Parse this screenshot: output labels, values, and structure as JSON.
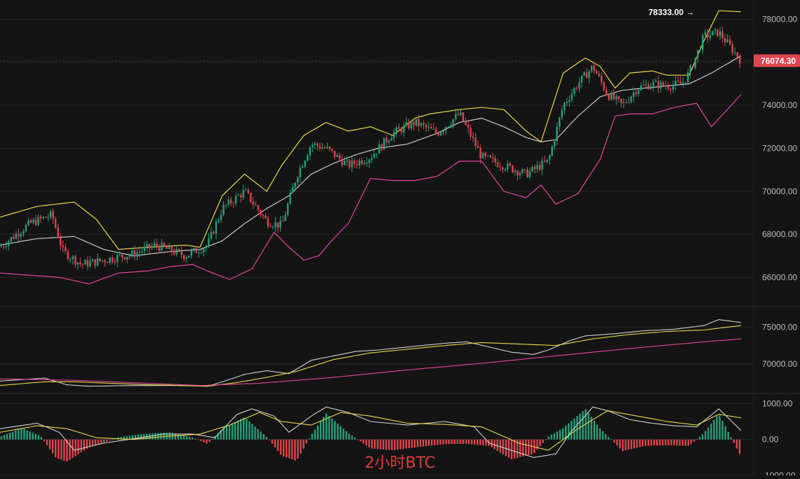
{
  "caption": "2小时BTC",
  "colors": {
    "background": "#141414",
    "up": "#26a17b",
    "down": "#e0454f",
    "bb_upper": "#e8d84a",
    "bb_middle": "#c8c8c8",
    "bb_lower": "#e3459c",
    "ma_white": "#d0d0d0",
    "ma_yellow": "#e8d84a",
    "ma_pink": "#e3459c",
    "macd_dif": "#d0d0d0",
    "macd_dea": "#e8d84a",
    "price_tag": "#e0454f",
    "grid": "#262626"
  },
  "chart_data": [
    {
      "type": "candlestick",
      "panel": "price",
      "title": "",
      "indicators": [
        "bollinger_upper",
        "bollinger_middle",
        "bollinger_lower"
      ],
      "ylim": [
        65200,
        78700
      ],
      "y_ticks": [
        "66000.00",
        "68000.00",
        "70000.00",
        "72000.00",
        "74000.00",
        "76000.00",
        "78000.00"
      ],
      "y_tick_values": [
        66000,
        68000,
        70000,
        72000,
        74000,
        76000,
        78000
      ],
      "high_annotation": {
        "label": "78333.00 →",
        "value": 78333
      },
      "last_price": {
        "label": "76074.30",
        "value": 76074.3
      },
      "close_path": {
        "x": [
          0,
          0.04,
          0.07,
          0.085,
          0.11,
          0.14,
          0.18,
          0.21,
          0.25,
          0.28,
          0.3,
          0.33,
          0.36,
          0.38,
          0.4,
          0.42,
          0.44,
          0.47,
          0.5,
          0.53,
          0.56,
          0.59,
          0.62,
          0.65,
          0.68,
          0.71,
          0.74,
          0.76,
          0.78,
          0.8,
          0.82,
          0.84,
          0.86,
          0.88,
          0.9,
          0.92,
          0.93,
          0.95,
          0.97,
          1.0
        ],
        "y": [
          67400,
          68500,
          68900,
          67200,
          66600,
          66800,
          67100,
          67500,
          67000,
          67500,
          69200,
          70000,
          68600,
          68400,
          70700,
          72200,
          72000,
          71200,
          71600,
          72700,
          73200,
          72700,
          73600,
          71600,
          71200,
          70800,
          71400,
          74000,
          75000,
          75800,
          74500,
          74000,
          74800,
          75000,
          74900,
          75000,
          75500,
          77200,
          77400,
          76074
        ]
      },
      "bb_upper": {
        "x": [
          0,
          0.05,
          0.1,
          0.13,
          0.16,
          0.2,
          0.25,
          0.27,
          0.3,
          0.33,
          0.36,
          0.38,
          0.41,
          0.44,
          0.47,
          0.5,
          0.53,
          0.56,
          0.58,
          0.62,
          0.65,
          0.68,
          0.71,
          0.73,
          0.76,
          0.79,
          0.81,
          0.83,
          0.85,
          0.88,
          0.9,
          0.93,
          0.95,
          0.97,
          1.0
        ],
        "y": [
          68800,
          69300,
          69500,
          68700,
          67300,
          67400,
          67500,
          67400,
          69800,
          70800,
          70000,
          71200,
          72600,
          73200,
          72800,
          73000,
          72600,
          73400,
          73600,
          73800,
          73900,
          73800,
          72800,
          72300,
          75500,
          76200,
          75800,
          74800,
          75500,
          75600,
          75400,
          75400,
          77000,
          78400,
          78350
        ]
      },
      "bb_middle": {
        "x": [
          0,
          0.05,
          0.1,
          0.14,
          0.18,
          0.23,
          0.27,
          0.3,
          0.33,
          0.36,
          0.39,
          0.42,
          0.45,
          0.48,
          0.51,
          0.55,
          0.59,
          0.62,
          0.65,
          0.68,
          0.71,
          0.73,
          0.75,
          0.78,
          0.81,
          0.84,
          0.87,
          0.9,
          0.93,
          0.96,
          1.0
        ],
        "y": [
          67500,
          67800,
          67900,
          67300,
          67000,
          67200,
          67300,
          67700,
          68500,
          69200,
          69800,
          70800,
          71300,
          71700,
          72000,
          72200,
          72700,
          73200,
          73400,
          73000,
          72500,
          72300,
          72400,
          73500,
          74400,
          74700,
          74800,
          74900,
          75000,
          75500,
          76300
        ]
      },
      "bb_lower": {
        "x": [
          0,
          0.04,
          0.08,
          0.12,
          0.16,
          0.2,
          0.23,
          0.26,
          0.28,
          0.31,
          0.34,
          0.37,
          0.39,
          0.41,
          0.43,
          0.45,
          0.47,
          0.5,
          0.53,
          0.56,
          0.59,
          0.62,
          0.65,
          0.68,
          0.71,
          0.73,
          0.75,
          0.78,
          0.81,
          0.83,
          0.85,
          0.88,
          0.91,
          0.94,
          0.96,
          1.0
        ],
        "y": [
          66200,
          66100,
          66000,
          65700,
          66200,
          66300,
          66500,
          66600,
          66300,
          65900,
          66400,
          68100,
          67400,
          66800,
          67000,
          67800,
          68500,
          70600,
          70500,
          70500,
          70700,
          71400,
          71400,
          70000,
          69700,
          70300,
          69400,
          69900,
          71500,
          73500,
          73600,
          73600,
          73900,
          74100,
          73000,
          74500
        ]
      }
    },
    {
      "type": "line",
      "panel": "moving_averages",
      "title": "",
      "ylim": [
        66500,
        77300
      ],
      "y_ticks": [
        "70000.00",
        "75000.00"
      ],
      "y_tick_values": [
        70000,
        75000
      ],
      "series": [
        {
          "color_key": "ma_white",
          "x": [
            0,
            0.06,
            0.09,
            0.12,
            0.18,
            0.24,
            0.28,
            0.3,
            0.33,
            0.36,
            0.39,
            0.42,
            0.45,
            0.48,
            0.51,
            0.55,
            0.6,
            0.63,
            0.66,
            0.69,
            0.72,
            0.74,
            0.77,
            0.79,
            0.83,
            0.87,
            0.91,
            0.95,
            0.97,
            1.0
          ],
          "y": [
            67700,
            68100,
            67200,
            67000,
            67100,
            67100,
            67000,
            67600,
            68600,
            69100,
            68700,
            70500,
            71100,
            71700,
            71900,
            72300,
            72800,
            73000,
            72300,
            71600,
            71300,
            71900,
            73200,
            73800,
            74100,
            74500,
            74700,
            75200,
            76000,
            75600
          ]
        },
        {
          "color_key": "ma_yellow",
          "x": [
            0,
            0.06,
            0.1,
            0.15,
            0.2,
            0.25,
            0.28,
            0.32,
            0.36,
            0.4,
            0.45,
            0.5,
            0.55,
            0.6,
            0.65,
            0.7,
            0.75,
            0.8,
            0.85,
            0.9,
            0.95,
            1.0
          ],
          "y": [
            67100,
            67600,
            67600,
            67400,
            67200,
            67100,
            67000,
            67500,
            68200,
            69000,
            70600,
            71500,
            72000,
            72500,
            72900,
            72700,
            72500,
            73400,
            74000,
            74400,
            74600,
            75200
          ]
        },
        {
          "color_key": "ma_pink",
          "x": [
            0,
            0.1,
            0.2,
            0.27,
            0.35,
            0.45,
            0.55,
            0.65,
            0.75,
            0.85,
            0.95,
            1.0
          ],
          "y": [
            68000,
            67800,
            67400,
            67100,
            67400,
            68200,
            69200,
            70100,
            71100,
            72100,
            73000,
            73400
          ]
        }
      ]
    },
    {
      "type": "bar",
      "panel": "macd",
      "title": "",
      "ylim": [
        -1000,
        1200
      ],
      "y_ticks": [
        "1000.00",
        "0.00",
        "-1000.00"
      ],
      "y_tick_values": [
        1000,
        0,
        -1000
      ],
      "histogram": {
        "x": [
          0,
          0.03,
          0.055,
          0.075,
          0.09,
          0.12,
          0.16,
          0.19,
          0.23,
          0.26,
          0.28,
          0.3,
          0.33,
          0.36,
          0.38,
          0.4,
          0.42,
          0.44,
          0.47,
          0.5,
          0.53,
          0.56,
          0.6,
          0.63,
          0.66,
          0.69,
          0.72,
          0.74,
          0.76,
          0.79,
          0.81,
          0.84,
          0.87,
          0.9,
          0.93,
          0.95,
          0.97,
          1.0
        ],
        "y": [
          80,
          320,
          90,
          -500,
          -620,
          -220,
          60,
          150,
          200,
          50,
          -120,
          300,
          620,
          70,
          -450,
          -600,
          120,
          730,
          180,
          -250,
          -300,
          -220,
          -130,
          -120,
          -180,
          -550,
          -400,
          80,
          320,
          850,
          300,
          -320,
          -180,
          -160,
          -180,
          180,
          720,
          -480
        ]
      },
      "dif": {
        "x": [
          0,
          0.05,
          0.08,
          0.1,
          0.14,
          0.18,
          0.22,
          0.26,
          0.29,
          0.32,
          0.34,
          0.37,
          0.39,
          0.42,
          0.44,
          0.47,
          0.5,
          0.55,
          0.6,
          0.64,
          0.66,
          0.69,
          0.72,
          0.75,
          0.77,
          0.8,
          0.82,
          0.85,
          0.88,
          0.91,
          0.94,
          0.97,
          1.0
        ],
        "y": [
          300,
          450,
          200,
          -300,
          -100,
          20,
          150,
          150,
          50,
          700,
          850,
          650,
          200,
          650,
          900,
          750,
          500,
          400,
          500,
          350,
          -100,
          -300,
          -500,
          -400,
          200,
          900,
          800,
          550,
          450,
          380,
          350,
          850,
          250
        ]
      },
      "dea": {
        "x": [
          0,
          0.05,
          0.09,
          0.13,
          0.18,
          0.22,
          0.27,
          0.31,
          0.35,
          0.38,
          0.42,
          0.46,
          0.5,
          0.55,
          0.6,
          0.65,
          0.7,
          0.74,
          0.78,
          0.82,
          0.86,
          0.9,
          0.94,
          0.97,
          1.0
        ],
        "y": [
          200,
          380,
          300,
          50,
          0,
          80,
          150,
          400,
          750,
          500,
          400,
          750,
          650,
          450,
          420,
          350,
          -100,
          -300,
          300,
          800,
          650,
          500,
          400,
          700,
          600
        ]
      }
    }
  ]
}
